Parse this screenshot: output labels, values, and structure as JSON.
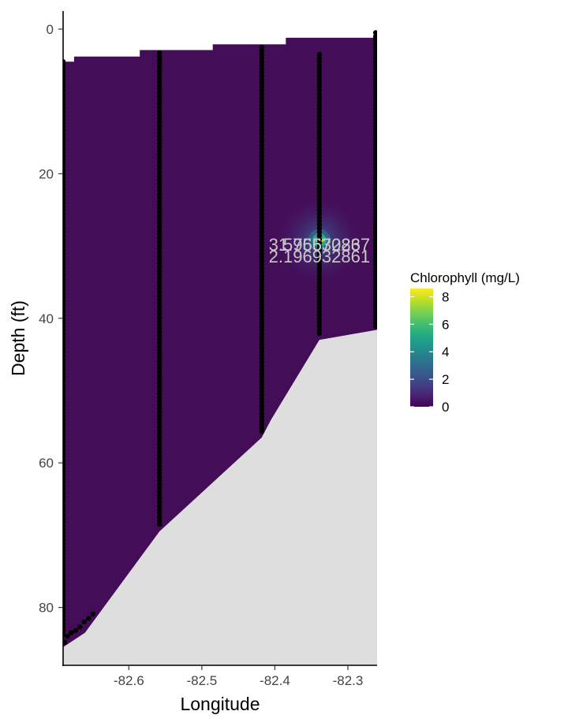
{
  "chart_data": {
    "type": "heatmap",
    "title": "",
    "xlabel": "Longitude",
    "ylabel": "Depth (ft)",
    "xlim": [
      -82.69,
      -82.26
    ],
    "ylim": [
      88,
      -2.5
    ],
    "y_reversed": true,
    "x_ticks": [
      -82.6,
      -82.5,
      -82.4,
      -82.3
    ],
    "x_tick_labels": [
      "-82.6",
      "-82.5",
      "-82.4",
      "-82.3"
    ],
    "y_ticks": [
      0,
      20,
      40,
      60,
      80
    ],
    "y_tick_labels": [
      "0",
      "20",
      "40",
      "60",
      "80"
    ],
    "legend": {
      "title": "Chlorophyll (mg/L)",
      "position": "right",
      "colormap": "viridis",
      "min": 0,
      "max": 8.6,
      "ticks": [
        0,
        2,
        4,
        6,
        8
      ],
      "tick_labels": [
        "0",
        "2",
        "4",
        "6",
        "8"
      ]
    },
    "colors": {
      "background_field": "#440d57",
      "bottom_fill": "#dedede",
      "points": "#000000",
      "contour_label": "#c8c8c8"
    },
    "surface_top": [
      {
        "x": -82.69,
        "depth": 4.5
      },
      {
        "x": -82.675,
        "depth": 4.5
      },
      {
        "x": -82.675,
        "depth": 3.8
      },
      {
        "x": -82.585,
        "depth": 3.8
      },
      {
        "x": -82.585,
        "depth": 2.9
      },
      {
        "x": -82.485,
        "depth": 2.9
      },
      {
        "x": -82.485,
        "depth": 2.1
      },
      {
        "x": -82.385,
        "depth": 2.1
      },
      {
        "x": -82.385,
        "depth": 1.2
      },
      {
        "x": -82.26,
        "depth": 1.2
      }
    ],
    "bottom_profile": [
      {
        "x": -82.69,
        "depth": 85.5
      },
      {
        "x": -82.66,
        "depth": 83.5
      },
      {
        "x": -82.558,
        "depth": 69.5
      },
      {
        "x": -82.418,
        "depth": 56.5
      },
      {
        "x": -82.405,
        "depth": 54
      },
      {
        "x": -82.339,
        "depth": 43
      },
      {
        "x": -82.26,
        "depth": 41.6
      }
    ],
    "hotspot": {
      "x": -82.339,
      "depth": 29.2,
      "max_value": 8.6
    },
    "contour_labels": [
      {
        "text": "3.575570237",
        "x": -82.339,
        "depth": 29.8
      },
      {
        "text": "1.9663286",
        "x": -82.339,
        "depth": 29.8
      },
      {
        "text": "2.196932861",
        "x": -82.339,
        "depth": 31.4
      }
    ],
    "profiles": [
      {
        "x": -82.69,
        "depth_min": 4.5,
        "depth_max": 84.0
      },
      {
        "x": -82.558,
        "depth_min": 3.3,
        "depth_max": 68.5
      },
      {
        "x": -82.418,
        "depth_min": 2.5,
        "depth_max": 56.0
      },
      {
        "x": -82.339,
        "depth_min": 3.5,
        "depth_max": 42.5
      },
      {
        "x": -82.262,
        "depth_min": 0.5,
        "depth_max": 41.5
      }
    ],
    "bottom_points": [
      {
        "x": -82.688,
        "depth": 84.8
      },
      {
        "x": -82.684,
        "depth": 84.0
      },
      {
        "x": -82.679,
        "depth": 83.5
      },
      {
        "x": -82.673,
        "depth": 83.2
      },
      {
        "x": -82.667,
        "depth": 82.7
      },
      {
        "x": -82.661,
        "depth": 82.0
      },
      {
        "x": -82.655,
        "depth": 81.5
      },
      {
        "x": -82.649,
        "depth": 80.9
      }
    ]
  }
}
